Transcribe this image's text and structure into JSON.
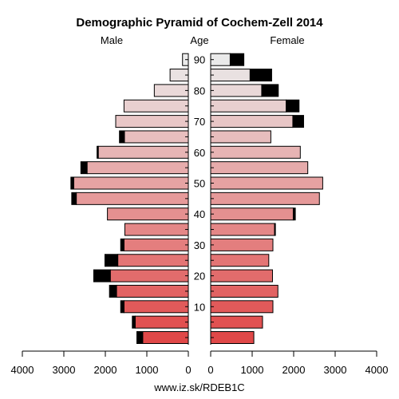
{
  "chart_data": {
    "type": "bar",
    "title": "Demographic Pyramid of Cochem-Zell 2014",
    "center_label": "Age",
    "left_label": "Male",
    "right_label": "Female",
    "source": "www.iz.sk/RDEB1C",
    "age_ticks": [
      "90",
      "80",
      "70",
      "60",
      "50",
      "40",
      "30",
      "20",
      "10"
    ],
    "x_ticks": [
      "4000",
      "3000",
      "2000",
      "1000",
      "0",
      "0",
      "1000",
      "2000",
      "3000",
      "4000"
    ],
    "xlim": [
      0,
      4000
    ],
    "age_groups": [
      "0-4",
      "5-9",
      "10-14",
      "15-19",
      "20-24",
      "25-29",
      "30-34",
      "35-39",
      "40-44",
      "45-49",
      "50-54",
      "55-59",
      "60-64",
      "65-69",
      "70-74",
      "75-79",
      "80-84",
      "85-89",
      "90+"
    ],
    "male": [
      1100,
      1280,
      1550,
      1730,
      1880,
      1700,
      1550,
      1530,
      1950,
      2700,
      2760,
      2440,
      2170,
      1540,
      1750,
      1550,
      820,
      440,
      140
    ],
    "male_excess": [
      140,
      70,
      80,
      170,
      400,
      310,
      80,
      0,
      0,
      110,
      70,
      150,
      30,
      120,
      0,
      0,
      0,
      0,
      0
    ],
    "female": [
      1040,
      1250,
      1500,
      1620,
      1490,
      1400,
      1500,
      1540,
      1990,
      2620,
      2700,
      2340,
      2160,
      1450,
      1980,
      1820,
      1230,
      950,
      470
    ],
    "female_excess": [
      0,
      0,
      0,
      0,
      0,
      0,
      0,
      20,
      50,
      0,
      0,
      0,
      0,
      0,
      260,
      310,
      400,
      520,
      330
    ],
    "colors": {
      "male_bottom": "#e04848",
      "male_top": "#ebebeb",
      "female_bottom": "#e04848",
      "female_top": "#eaeaea",
      "excess": "#000000"
    }
  }
}
